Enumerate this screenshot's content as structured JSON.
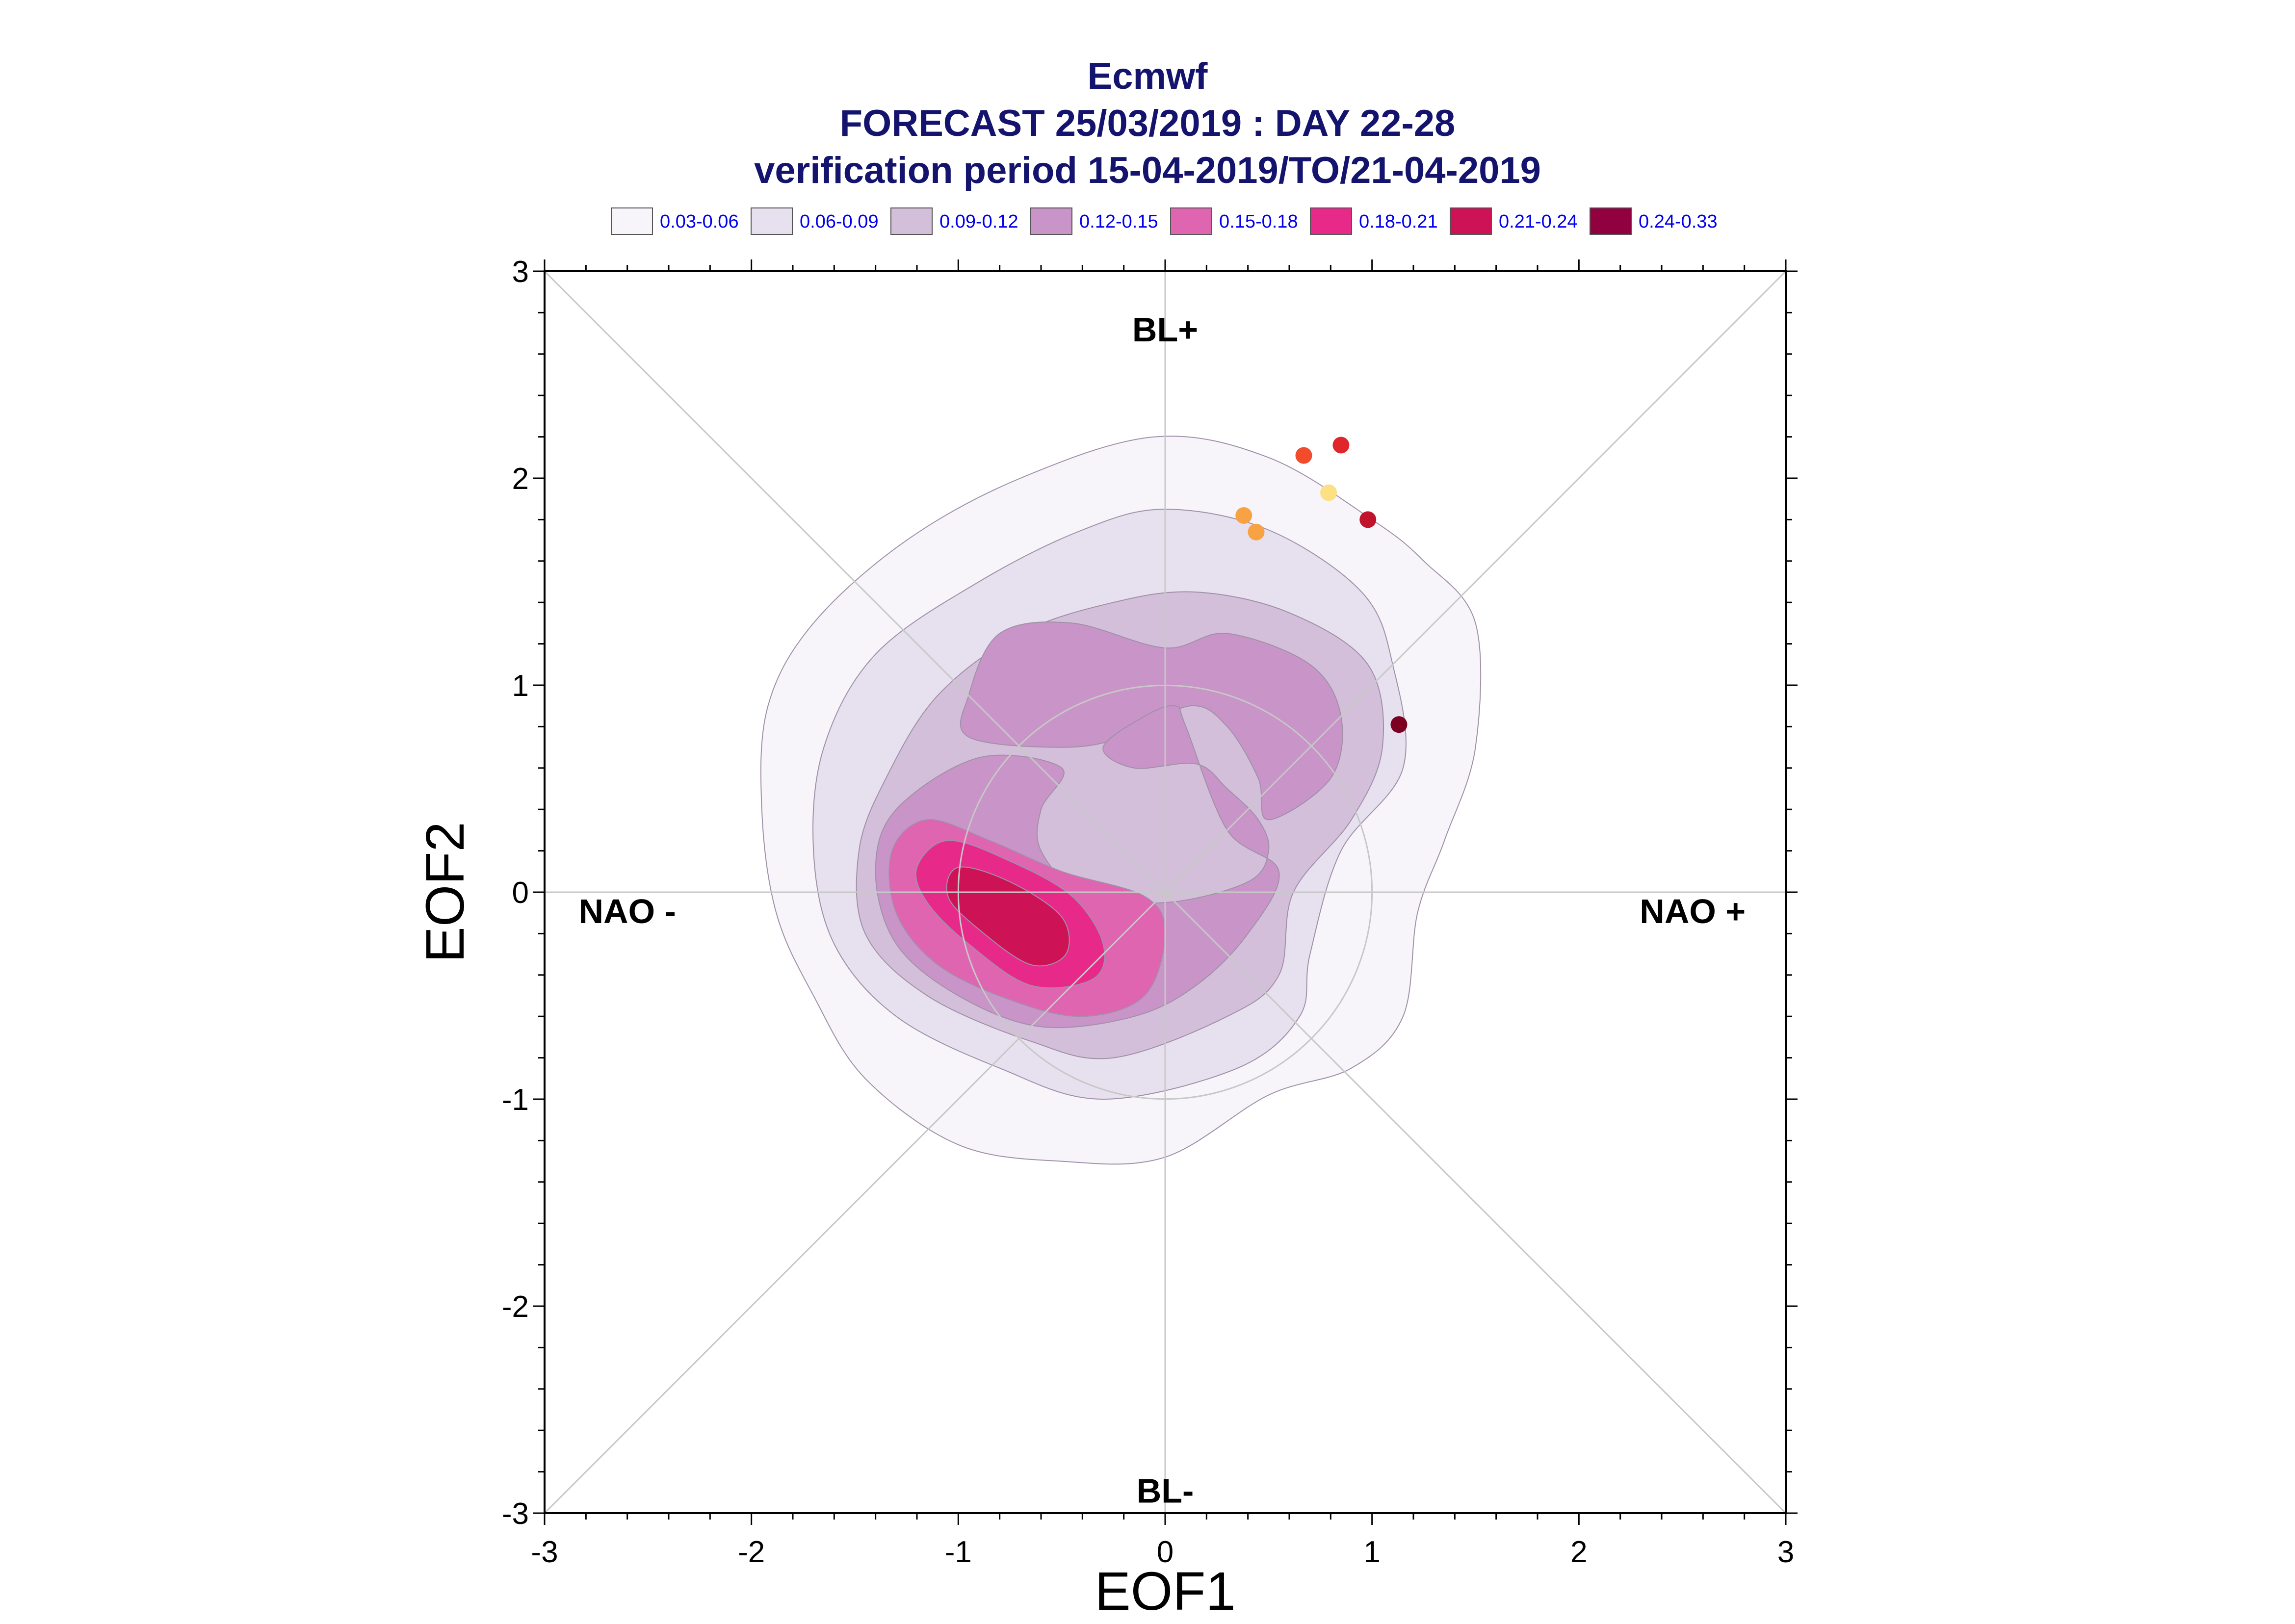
{
  "chart_data": {
    "type": "heatmap",
    "title": "Ecmwf",
    "subtitle": "FORECAST 25/03/2019 : DAY 22-28",
    "subtitle2": "verification period 15-04-2019/TO/21-04-2019",
    "xlabel": "EOF1",
    "ylabel": "EOF2",
    "xlim": [
      -3,
      3
    ],
    "ylim": [
      -3,
      3
    ],
    "xticks": [
      "-3",
      "-2",
      "-1",
      "0",
      "1",
      "2",
      "3"
    ],
    "yticks": [
      "-3",
      "-2",
      "-1",
      "0",
      "1",
      "2",
      "3"
    ],
    "grid": false,
    "legend_position": "top",
    "regime_labels": [
      {
        "text": "BL+",
        "x": 0,
        "y": 2.72
      },
      {
        "text": "BL-",
        "x": 0,
        "y": -2.89
      },
      {
        "text": "NAO -",
        "x": -2.6,
        "y": -0.09
      },
      {
        "text": "NAO +",
        "x": 2.55,
        "y": -0.09
      }
    ],
    "legend": [
      {
        "label": "0.03-0.06",
        "color": "#f7f5fa"
      },
      {
        "label": "0.06-0.09",
        "color": "#e7e0ee"
      },
      {
        "label": "0.09-0.12",
        "color": "#d4bfda"
      },
      {
        "label": "0.12-0.15",
        "color": "#c994c7"
      },
      {
        "label": "0.15-0.18",
        "color": "#df65b0"
      },
      {
        "label": "0.18-0.21",
        "color": "#e7298a"
      },
      {
        "label": "0.21-0.24",
        "color": "#ce1256"
      },
      {
        "label": "0.24-0.33",
        "color": "#91003f"
      }
    ],
    "density_contours": [
      {
        "level": "0.03-0.06",
        "color": "#f7f5fa",
        "points": [
          [
            -0.05,
            2.2
          ],
          [
            0.5,
            2.1
          ],
          [
            1.0,
            1.8
          ],
          [
            1.25,
            1.6
          ],
          [
            1.5,
            1.3
          ],
          [
            1.5,
            0.7
          ],
          [
            1.35,
            0.25
          ],
          [
            1.22,
            -0.1
          ],
          [
            1.15,
            -0.6
          ],
          [
            0.9,
            -0.85
          ],
          [
            0.5,
            -0.98
          ],
          [
            0.0,
            -1.28
          ],
          [
            -0.5,
            -1.3
          ],
          [
            -1.0,
            -1.22
          ],
          [
            -1.45,
            -0.9
          ],
          [
            -1.7,
            -0.5
          ],
          [
            -1.88,
            -0.1
          ],
          [
            -1.95,
            0.4
          ],
          [
            -1.92,
            0.9
          ],
          [
            -1.7,
            1.3
          ],
          [
            -1.25,
            1.7
          ],
          [
            -0.7,
            2.0
          ]
        ]
      },
      {
        "level": "0.06-0.09",
        "color": "#e7e0ee",
        "points": [
          [
            0.0,
            1.85
          ],
          [
            0.5,
            1.75
          ],
          [
            0.95,
            1.45
          ],
          [
            1.1,
            1.1
          ],
          [
            1.15,
            0.6
          ],
          [
            0.85,
            0.2
          ],
          [
            0.7,
            -0.3
          ],
          [
            0.65,
            -0.6
          ],
          [
            0.35,
            -0.85
          ],
          [
            -0.3,
            -1.0
          ],
          [
            -0.8,
            -0.85
          ],
          [
            -1.3,
            -0.6
          ],
          [
            -1.6,
            -0.25
          ],
          [
            -1.7,
            0.2
          ],
          [
            -1.65,
            0.7
          ],
          [
            -1.4,
            1.15
          ],
          [
            -0.9,
            1.5
          ],
          [
            -0.4,
            1.75
          ]
        ]
      },
      {
        "level": "0.09-0.12",
        "color": "#d4bfda",
        "points": [
          [
            0.15,
            1.45
          ],
          [
            0.6,
            1.35
          ],
          [
            0.98,
            1.1
          ],
          [
            1.05,
            0.7
          ],
          [
            0.9,
            0.35
          ],
          [
            0.62,
            0.0
          ],
          [
            0.55,
            -0.4
          ],
          [
            0.3,
            -0.6
          ],
          [
            -0.25,
            -0.8
          ],
          [
            -0.65,
            -0.72
          ],
          [
            -1.15,
            -0.5
          ],
          [
            -1.45,
            -0.2
          ],
          [
            -1.48,
            0.2
          ],
          [
            -1.35,
            0.55
          ],
          [
            -1.1,
            0.95
          ],
          [
            -0.7,
            1.25
          ],
          [
            -0.25,
            1.4
          ]
        ]
      },
      {
        "level": "0.12-0.15",
        "color": "#c994c7",
        "points": [
          [
            -0.95,
            0.95
          ],
          [
            -0.8,
            1.25
          ],
          [
            -0.45,
            1.3
          ],
          [
            0.0,
            1.18
          ],
          [
            0.3,
            1.25
          ],
          [
            0.7,
            1.1
          ],
          [
            0.85,
            0.85
          ],
          [
            0.8,
            0.55
          ],
          [
            0.5,
            0.35
          ],
          [
            0.45,
            0.55
          ],
          [
            0.3,
            0.8
          ],
          [
            0.12,
            0.9
          ],
          [
            -0.2,
            0.75
          ],
          [
            -0.5,
            0.7
          ],
          [
            -0.95,
            0.75
          ]
        ]
      },
      {
        "level": "0.12-0.15",
        "color": "#c994c7",
        "points": [
          [
            -0.9,
            0.65
          ],
          [
            -0.5,
            0.6
          ],
          [
            -0.6,
            0.4
          ],
          [
            -0.6,
            0.2
          ],
          [
            -0.4,
            0.0
          ],
          [
            0.0,
            -0.05
          ],
          [
            0.4,
            0.05
          ],
          [
            0.5,
            0.2
          ],
          [
            0.45,
            0.35
          ],
          [
            0.3,
            0.5
          ],
          [
            0.15,
            0.62
          ],
          [
            -0.15,
            0.6
          ],
          [
            -0.3,
            0.7
          ],
          [
            -0.1,
            0.85
          ],
          [
            0.05,
            0.9
          ],
          [
            0.1,
            0.8
          ],
          [
            0.3,
            0.3
          ],
          [
            0.55,
            0.1
          ],
          [
            0.4,
            -0.2
          ],
          [
            0.15,
            -0.45
          ],
          [
            -0.15,
            -0.6
          ],
          [
            -0.6,
            -0.65
          ],
          [
            -1.0,
            -0.5
          ],
          [
            -1.3,
            -0.25
          ],
          [
            -1.4,
            0.1
          ],
          [
            -1.3,
            0.4
          ]
        ]
      },
      {
        "level": "0.15-0.18",
        "color": "#df65b0",
        "points": [
          [
            -1.15,
            0.35
          ],
          [
            -0.85,
            0.25
          ],
          [
            -0.5,
            0.1
          ],
          [
            -0.1,
            -0.02
          ],
          [
            0.0,
            -0.2
          ],
          [
            -0.1,
            -0.5
          ],
          [
            -0.4,
            -0.6
          ],
          [
            -0.75,
            -0.52
          ],
          [
            -1.1,
            -0.35
          ],
          [
            -1.3,
            -0.1
          ],
          [
            -1.32,
            0.2
          ]
        ]
      },
      {
        "level": "0.18-0.21",
        "color": "#e7298a",
        "points": [
          [
            -1.05,
            0.25
          ],
          [
            -0.75,
            0.15
          ],
          [
            -0.45,
            -0.02
          ],
          [
            -0.3,
            -0.25
          ],
          [
            -0.35,
            -0.42
          ],
          [
            -0.65,
            -0.45
          ],
          [
            -0.95,
            -0.25
          ],
          [
            -1.15,
            -0.05
          ],
          [
            -1.2,
            0.12
          ]
        ]
      },
      {
        "level": "0.21-0.24",
        "color": "#ce1256",
        "points": [
          [
            -1.0,
            0.12
          ],
          [
            -0.75,
            0.05
          ],
          [
            -0.5,
            -0.12
          ],
          [
            -0.48,
            -0.3
          ],
          [
            -0.65,
            -0.35
          ],
          [
            -0.9,
            -0.18
          ],
          [
            -1.05,
            -0.02
          ]
        ]
      }
    ],
    "circle_radius": 1.0,
    "members": [
      {
        "x": 0.67,
        "y": 2.11,
        "color": "#f24c2d"
      },
      {
        "x": 0.85,
        "y": 2.16,
        "color": "#e0262b"
      },
      {
        "x": 0.79,
        "y": 1.93,
        "color": "#fde083"
      },
      {
        "x": 0.38,
        "y": 1.82,
        "color": "#f9a243"
      },
      {
        "x": 0.44,
        "y": 1.74,
        "color": "#f9a243"
      },
      {
        "x": 0.98,
        "y": 1.8,
        "color": "#c1142c"
      },
      {
        "x": 1.13,
        "y": 0.81,
        "color": "#7b0021"
      }
    ]
  }
}
